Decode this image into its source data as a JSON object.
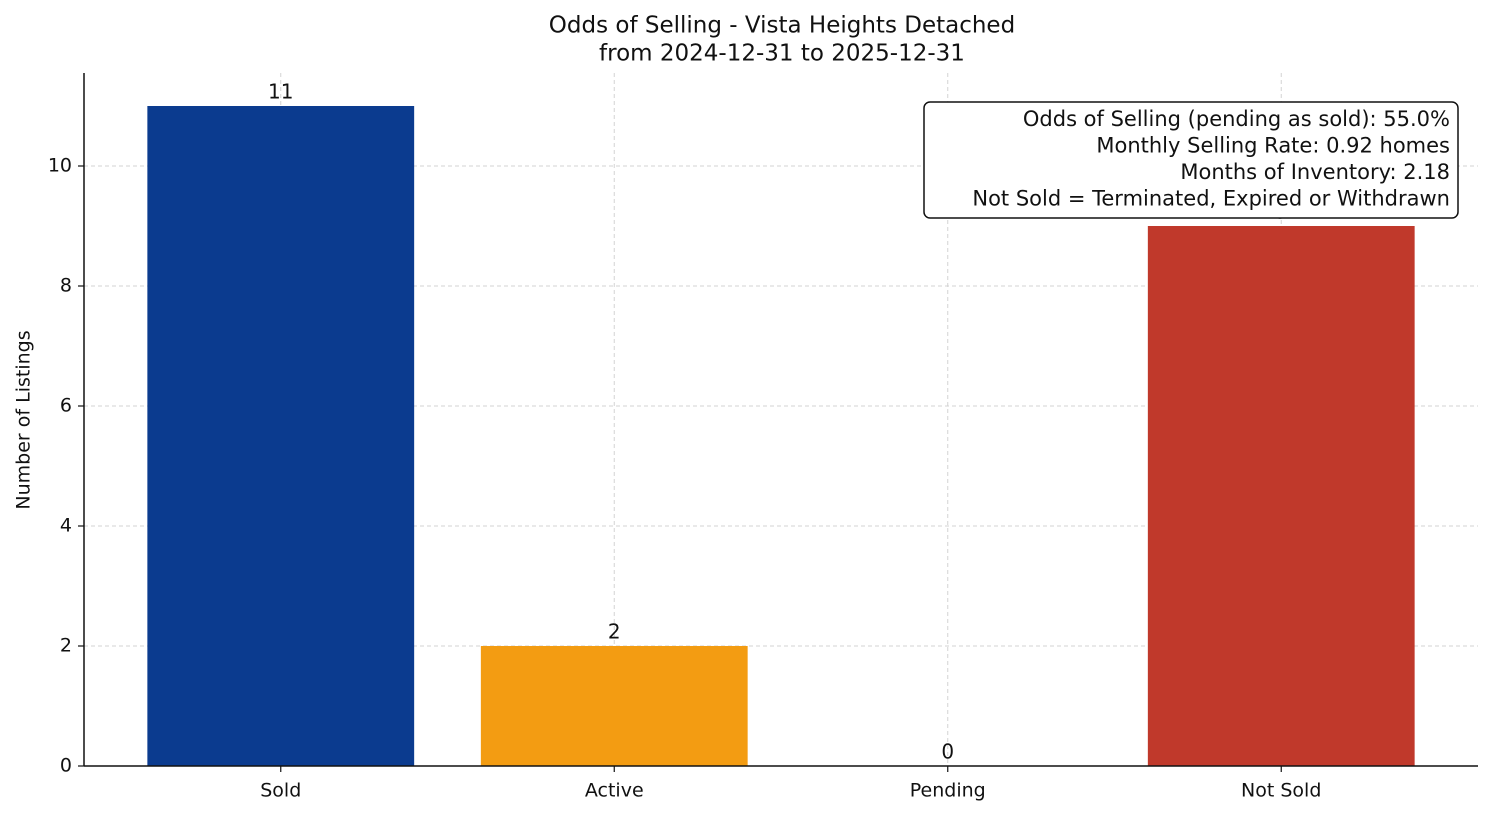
{
  "chart_data": {
    "type": "bar",
    "title": [
      "Odds of Selling - Vista Heights Detached",
      "from 2024-12-31 to 2025-12-31"
    ],
    "y_label": "Number of Listings",
    "categories": [
      "Sold",
      "Active",
      "Pending",
      "Not Sold"
    ],
    "values": [
      11,
      2,
      0,
      9
    ],
    "colors": [
      "#0b3b8f",
      "#f39c12",
      "#27ae60",
      "#c0392b"
    ],
    "ylim": [
      0,
      11.55
    ],
    "yticks": [
      0,
      2,
      4,
      6,
      8,
      10
    ],
    "grid": true,
    "annotation": [
      "Odds of Selling (pending as sold): 55.0%",
      "Monthly Selling Rate: 0.92 homes",
      "Months of Inventory: 2.18",
      "Not Sold = Terminated, Expired or Withdrawn"
    ]
  }
}
